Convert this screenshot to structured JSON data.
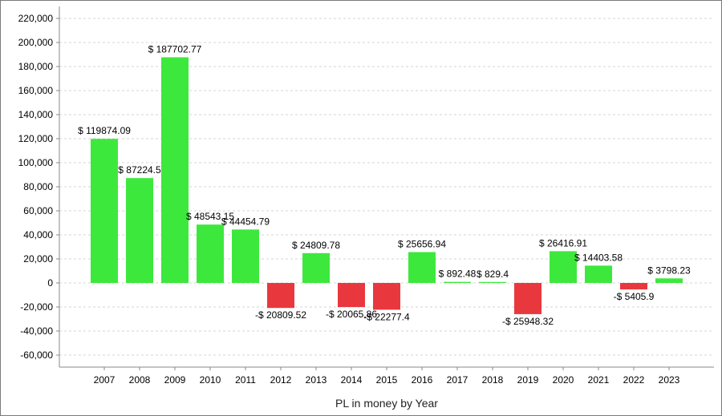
{
  "chart_data": {
    "type": "bar",
    "title": "",
    "xlabel": "PL in money by Year",
    "ylabel": "",
    "ylim": [
      -70000,
      230000
    ],
    "yticks": [
      220000,
      200000,
      180000,
      160000,
      140000,
      120000,
      100000,
      80000,
      60000,
      40000,
      20000,
      0,
      -20000,
      -40000,
      -60000
    ],
    "ytick_labels": [
      "220,000",
      "200,000",
      "180,000",
      "160,000",
      "140,000",
      "120,000",
      "100,000",
      "80,000",
      "60,000",
      "40,000",
      "20,000",
      "0",
      "-20,000",
      "-40,000",
      "-60,000"
    ],
    "grid": true,
    "legend": "none",
    "categories": [
      "2007",
      "2008",
      "2009",
      "2010",
      "2011",
      "2012",
      "2013",
      "2014",
      "2015",
      "2016",
      "2017",
      "2018",
      "2019",
      "2020",
      "2021",
      "2022",
      "2023"
    ],
    "values": [
      119874.09,
      87224.5,
      187702.77,
      48543.15,
      44454.79,
      -20809.52,
      24809.78,
      -20065.86,
      -22277.4,
      25656.94,
      892.48,
      829.4,
      -25948.32,
      26416.91,
      14403.58,
      -5405.9,
      3798.23
    ],
    "data_labels": [
      "$ 119874.09",
      "$ 87224.5",
      "$ 187702.77",
      "$ 48543.15",
      "$ 44454.79",
      "-$ 20809.52",
      "$ 24809.78",
      "-$ 20065.86",
      "-$ 22277.4",
      "$ 25656.94",
      "$ 892.48",
      "$ 829.4",
      "-$ 25948.32",
      "$ 26416.91",
      "$ 14403.58",
      "-$ 5405.9",
      "$ 3798.23"
    ],
    "colors": {
      "positive": "#3de83d",
      "negative": "#e8383d",
      "grid": "#d4d4d4",
      "axis": "#8a8a8a"
    }
  }
}
